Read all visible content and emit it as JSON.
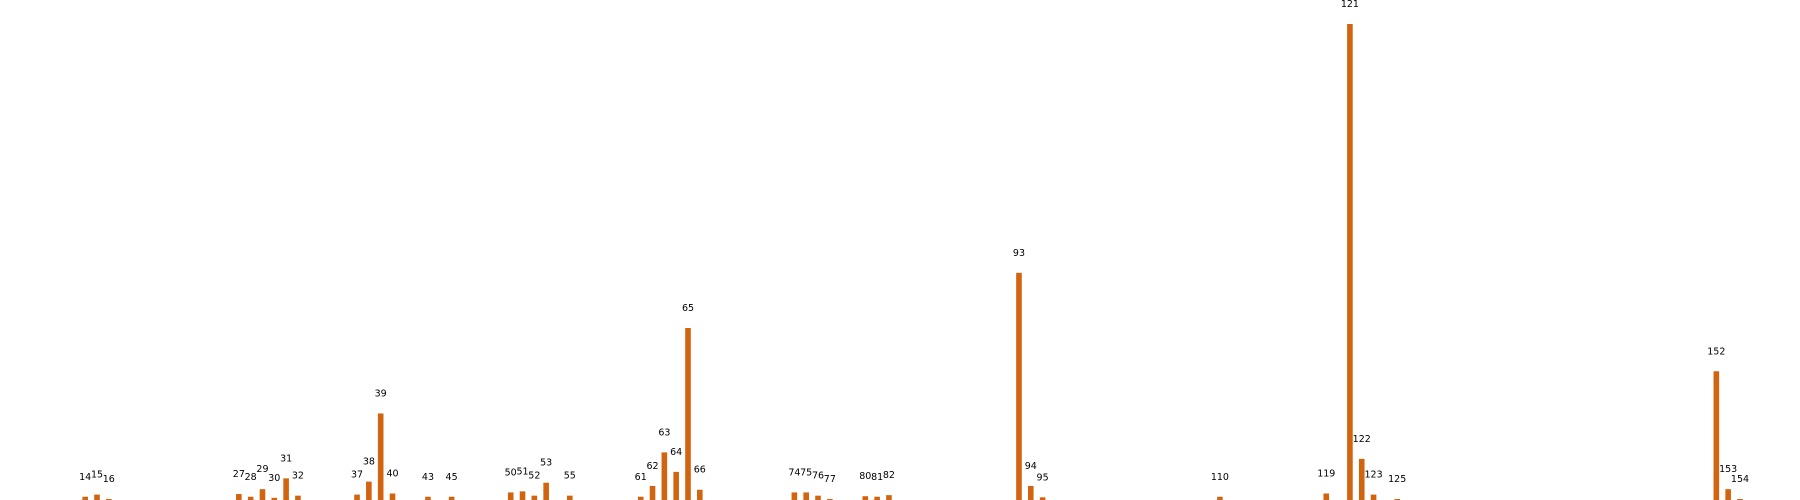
{
  "chart_data": {
    "type": "bar",
    "title": "",
    "xlabel": "",
    "ylabel": "",
    "axes_visible": false,
    "grid": false,
    "bar_color": "#d2640f",
    "x": [
      14,
      15,
      16,
      27,
      28,
      29,
      30,
      31,
      32,
      37,
      38,
      39,
      40,
      43,
      45,
      50,
      51,
      52,
      53,
      55,
      61,
      62,
      63,
      64,
      65,
      66,
      74,
      75,
      76,
      77,
      80,
      81,
      82,
      93,
      94,
      95,
      110,
      119,
      121,
      122,
      123,
      125,
      152,
      153,
      154
    ],
    "values": [
      0.3,
      0.5,
      0.05,
      0.55,
      0.3,
      1.0,
      0.2,
      2.0,
      0.4,
      0.5,
      1.7,
      8.0,
      0.6,
      0.3,
      0.3,
      0.7,
      0.8,
      0.4,
      1.6,
      0.4,
      0.3,
      1.3,
      4.4,
      2.6,
      15.9,
      0.95,
      0.7,
      0.7,
      0.4,
      0.06,
      0.35,
      0.3,
      0.45,
      21.0,
      1.3,
      0.25,
      0.3,
      0.6,
      44.0,
      3.8,
      0.5,
      0.02,
      11.9,
      1.0,
      0.02
    ],
    "data_labels": [
      "14",
      "15",
      "16",
      "27",
      "28",
      "29",
      "30",
      "31",
      "32",
      "37",
      "38",
      "39",
      "40",
      "43",
      "45",
      "50",
      "51",
      "52",
      "53",
      "55",
      "61",
      "62",
      "63",
      "64",
      "65",
      "66",
      "74",
      "75",
      "76",
      "77",
      "80",
      "81",
      "82",
      "93",
      "94",
      "95",
      "110",
      "119",
      "121",
      "122",
      "123",
      "125",
      "152",
      "153",
      "154"
    ],
    "ylim": [
      0,
      44
    ]
  }
}
